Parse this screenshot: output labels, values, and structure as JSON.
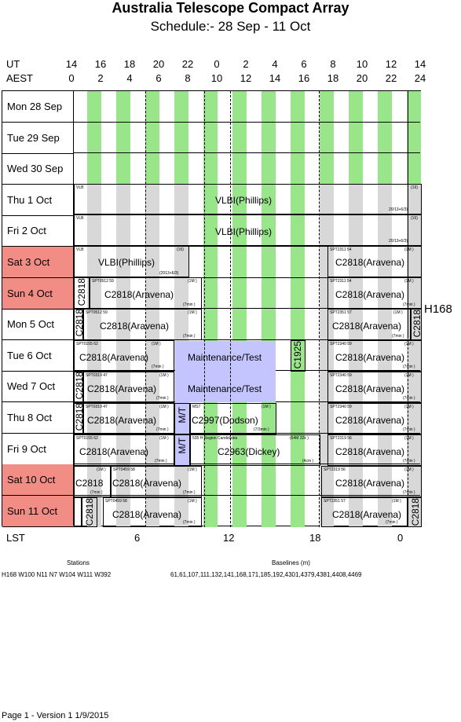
{
  "title": "Australia Telescope Compact Array",
  "subtitle": "Schedule:- 28 Sep - 11 Oct",
  "axis": {
    "ut_label": "UT",
    "aest_label": "AEST",
    "ut_hours": [
      "14",
      "16",
      "18",
      "20",
      "22",
      "0",
      "2",
      "4",
      "6",
      "8",
      "10",
      "12",
      "14"
    ],
    "aest_hours": [
      "0",
      "2",
      "4",
      "6",
      "8",
      "10",
      "12",
      "14",
      "16",
      "18",
      "20",
      "22",
      "24"
    ],
    "lst_label": "LST",
    "lst_ticks": [
      "6",
      "12",
      "18",
      "0"
    ]
  },
  "days": [
    {
      "label": "Mon  28 Sep",
      "weekend": false
    },
    {
      "label": "Tue   29 Sep",
      "weekend": false
    },
    {
      "label": "Wed  30 Sep",
      "weekend": false
    },
    {
      "label": "Thu    1  Oct",
      "weekend": false
    },
    {
      "label": "Fri     2  Oct",
      "weekend": false
    },
    {
      "label": "Sat    3  Oct",
      "weekend": true
    },
    {
      "label": "Sun    4  Oct",
      "weekend": true
    },
    {
      "label": "Mon    5  Oct",
      "weekend": false
    },
    {
      "label": "Tue    6  Oct",
      "weekend": false
    },
    {
      "label": "Wed    7  Oct",
      "weekend": false
    },
    {
      "label": "Thu    8  Oct",
      "weekend": false
    },
    {
      "label": "Fri     9  Oct",
      "weekend": false
    },
    {
      "label": "Sat   10 Oct",
      "weekend": true
    },
    {
      "label": "Sun   11 Oct",
      "weekend": true
    }
  ],
  "projects": {
    "vlbi": "VLBI(Phillips)",
    "c2818_aravena": "C2818(Aravena)",
    "c2818": "C2818",
    "maintenance": "Maintenance/Test",
    "c2997": "C2997(Dodson)",
    "c2963": "C2963(Dickey)",
    "c1925": "C1925",
    "mt": "M/T",
    "h168": "H168"
  },
  "small": {
    "vlb": "VLB",
    "code16": "(16)",
    "code2013": "(2013+6/3)",
    "code2013b": "20/13+6/3)",
    "one_m": "(1M )",
    "seven_min": "(7min )",
    "spt2311": "SPT2311 54",
    "spt0512": "SPT0512 59",
    "spt2351": "SPT2351 57",
    "spt0155": "SPT0155 62",
    "spt2340": "SPT2340 59",
    "spt0319": "SPT0319 47",
    "spt2319": "SPT2319 56",
    "spt0459": "SPT0459 58",
    "ms7": "MS7",
    "seven3min": "(7/3min )",
    "regcand": "535 H   Region Candidates",
    "m64": "(64M 32k )",
    "four_cm": "(4cm )"
  },
  "footer": {
    "stations_title": "Stations",
    "stations": "H168   W100  N11  N7  W104  W111  W392",
    "baselines_title": "Baselines (m)",
    "baselines": "61,61,107,111,132,141,168,171,185,192,4301,4379,4381,4408,4469",
    "page": "Page 1 - Version 1   1/9/2015"
  }
}
